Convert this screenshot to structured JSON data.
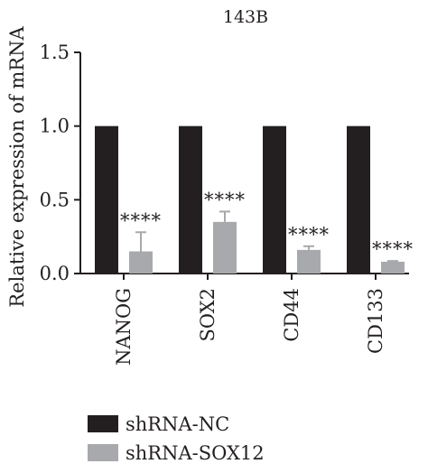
{
  "chart_data": {
    "type": "bar",
    "title": "143B",
    "ylabel": "Relative expression of mRNA",
    "xlabel": "",
    "ylim": [
      0,
      1.5
    ],
    "yticks": [
      "0.0",
      "0.5",
      "1.0",
      "1.5"
    ],
    "categories": [
      "NANOG",
      "SOX2",
      "CD44",
      "CD133"
    ],
    "series": [
      {
        "name": "shRNA-NC",
        "color": "#231f20",
        "values": [
          1.0,
          1.0,
          1.0,
          1.0
        ]
      },
      {
        "name": "shRNA-SOX12",
        "color": "#a7a9ac",
        "values": [
          0.15,
          0.35,
          0.16,
          0.08
        ],
        "errors": [
          0.13,
          0.07,
          0.025,
          0.005
        ]
      }
    ],
    "annotations": [
      "****",
      "****",
      "****",
      "****"
    ],
    "legend": {
      "placement": "bottom-left",
      "entries": [
        "shRNA-NC",
        "shRNA-SOX12"
      ]
    },
    "grid": false
  }
}
